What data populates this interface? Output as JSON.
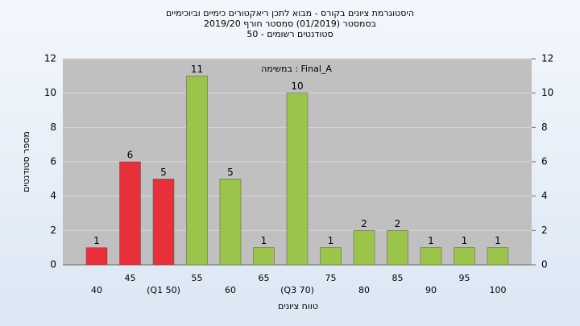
{
  "chart_data": {
    "type": "bar",
    "title": [
      "היסטוגרמת ציונים בקורס - מבוא לתכן ריאקטורים כימיים וביוכימיים",
      "בסמסטר  (01/2019)  סמסטר חורף 2019/20",
      "סטודנטים רשומים - 50"
    ],
    "annotation": "במשימה : Final_A",
    "x_label": "טווח ציונים",
    "y_label": "מספר סטודנטים",
    "categories": [
      "40",
      "45",
      "(Q1 50)",
      "55",
      "60",
      "65",
      "(Q3 70)",
      "75",
      "80",
      "85",
      "90",
      "95",
      "100"
    ],
    "values": [
      1,
      6,
      5,
      11,
      5,
      1,
      10,
      1,
      2,
      2,
      1,
      1,
      1
    ],
    "colors": [
      "#e8303a",
      "#e8303a",
      "#e8303a",
      "#9cc44a",
      "#9cc44a",
      "#9cc44a",
      "#9cc44a",
      "#9cc44a",
      "#9cc44a",
      "#9cc44a",
      "#9cc44a",
      "#9cc44a",
      "#9cc44a"
    ],
    "ylim": [
      0,
      12
    ],
    "yticks": [
      0,
      2,
      4,
      6,
      8,
      10,
      12
    ],
    "y2lim": [
      0,
      12
    ],
    "y2ticks": [
      0,
      2,
      4,
      6,
      8,
      10,
      12
    ],
    "grid": true
  }
}
